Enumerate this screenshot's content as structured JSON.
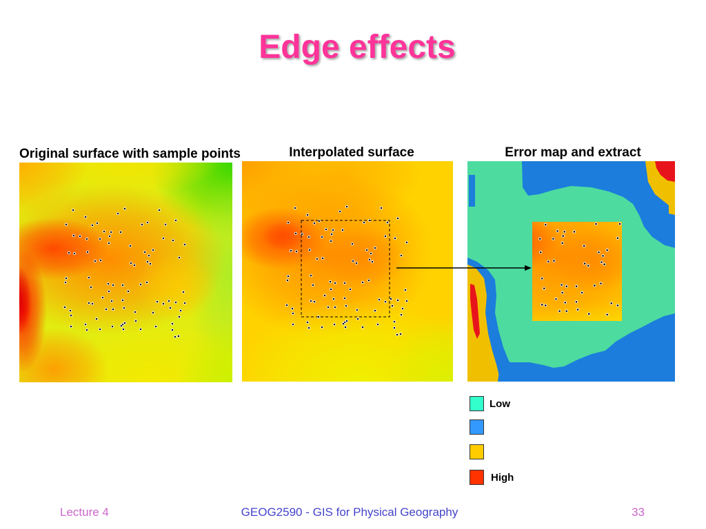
{
  "slide": {
    "title": "Edge effects",
    "panels": [
      {
        "label": "Original surface with sample points"
      },
      {
        "label": "Interpolated surface"
      },
      {
        "label": "Error map and extract"
      }
    ],
    "legend": [
      {
        "label": "Low",
        "color": "#33ffcc"
      },
      {
        "color": "#3399ff"
      },
      {
        "color": "#ffcc00"
      },
      {
        "label": "High",
        "color": "#ff3300"
      }
    ],
    "footer": {
      "lecture": "Lecture 4",
      "course": "GEOG2590 - GIS for Physical Geography",
      "page_number": "33"
    }
  },
  "colors": {
    "title": "#ff3399",
    "footer_side": "#cc66cc",
    "footer_center": "#4444cc"
  }
}
